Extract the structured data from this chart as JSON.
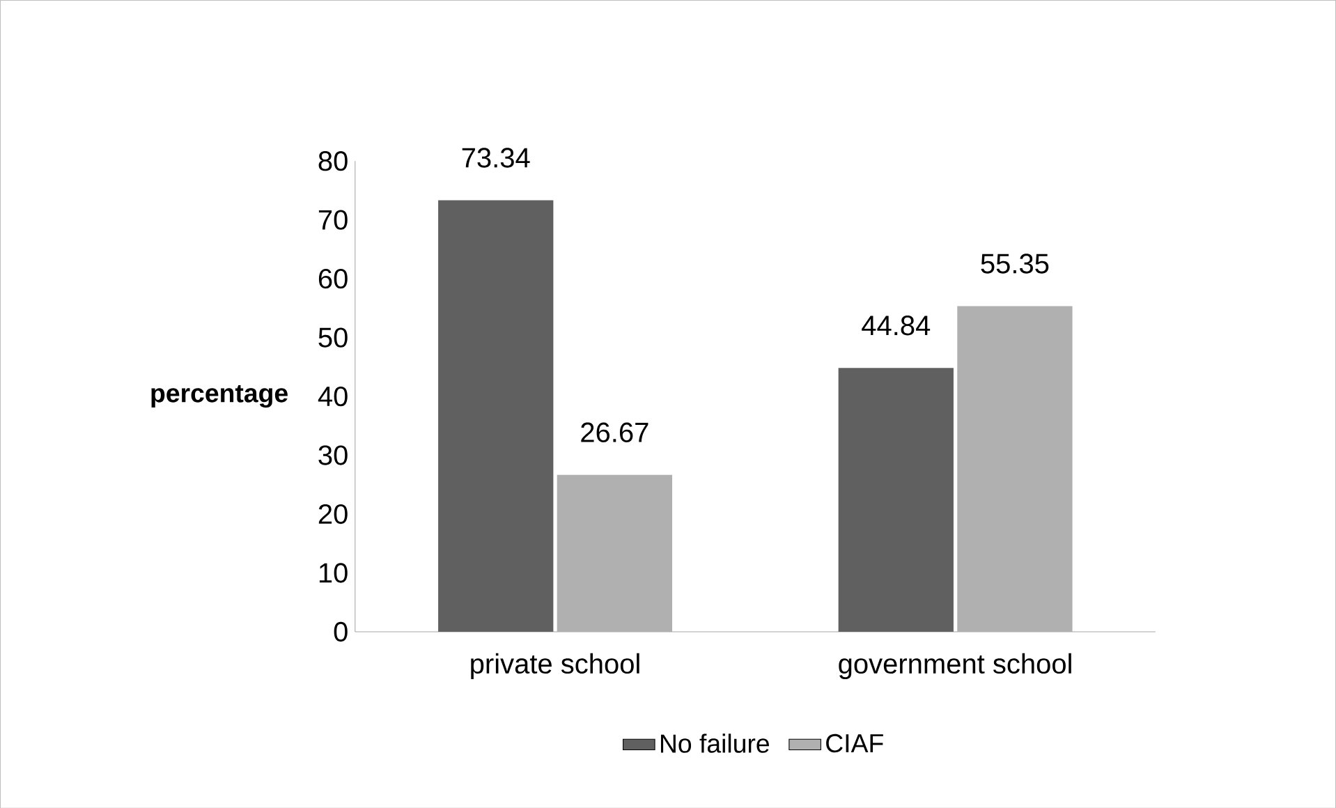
{
  "chart_data": {
    "type": "bar",
    "ylabel": "percentage",
    "categories": [
      "private school",
      "government school"
    ],
    "series": [
      {
        "name": "No failure",
        "color": "#606060",
        "values": [
          73.34,
          44.84
        ]
      },
      {
        "name": "CIAF",
        "color": "#b0b0b0",
        "values": [
          26.67,
          55.35
        ]
      }
    ],
    "ylim": [
      0,
      80
    ],
    "yticks": [
      0,
      10,
      20,
      30,
      40,
      50,
      60,
      70,
      80
    ],
    "grid": false,
    "legend": "bottom",
    "data_labels": true
  }
}
